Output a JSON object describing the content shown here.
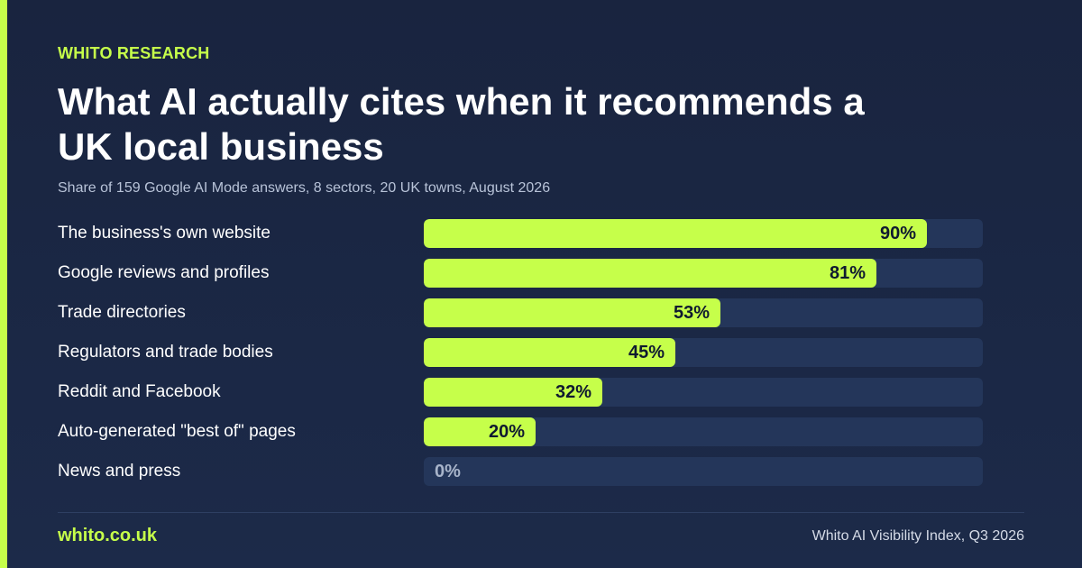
{
  "header": {
    "eyebrow": "WHITO RESEARCH",
    "title": "What AI actually cites when it recommends a UK local business",
    "subtitle": "Share of 159 Google AI Mode answers, 8 sectors, 20 UK towns, August 2026"
  },
  "chart_data": {
    "type": "bar",
    "orientation": "horizontal",
    "title": "What AI actually cites when it recommends a UK local business",
    "subtitle": "Share of 159 Google AI Mode answers, 8 sectors, 20 UK towns, August 2026",
    "categories": [
      "The business's own website",
      "Google reviews and profiles",
      "Trade directories",
      "Regulators and trade bodies",
      "Reddit and Facebook",
      "Auto-generated \"best of\" pages",
      "News and press"
    ],
    "values": [
      90,
      81,
      53,
      45,
      32,
      20,
      0
    ],
    "value_labels": [
      "90%",
      "81%",
      "53%",
      "45%",
      "32%",
      "20%",
      "0%"
    ],
    "xlim": [
      0,
      100
    ],
    "unit": "%",
    "grid": false,
    "legend": "none",
    "colors": {
      "bar": "#c6ff4a",
      "track": "#24365a"
    }
  },
  "footer": {
    "brand": "whito.co.uk",
    "source": "Whito AI Visibility Index, Q3 2026"
  },
  "colors": {
    "background": "#1b2844",
    "accent": "#c6ff4a",
    "text": "#ffffff",
    "muted": "#b8c3d8"
  }
}
